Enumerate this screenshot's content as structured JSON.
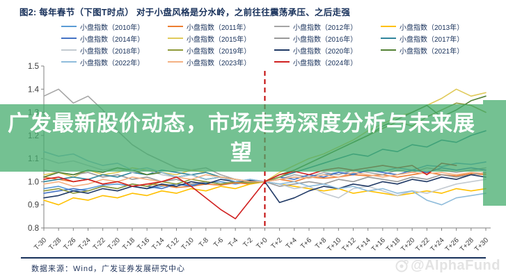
{
  "figure": {
    "title": "图2:  每年春节（下图T时点）  对于小盘风格是分水岭，之前往往震荡承压、之后走强"
  },
  "overlay": {
    "headline": "广发最新股价动态，市场走势深度分析与未来展望",
    "color_rgba": "rgba(70,172,110,0.75)"
  },
  "footer": {
    "source": "数据来源：Wind，广发证券发展研究中心",
    "watermark": "@AlphaFund",
    "watermark_icon": "camera-logo-icon"
  },
  "chart_data": {
    "type": "line",
    "title": "",
    "xlabel": "",
    "ylabel": "",
    "ylim": [
      0.8,
      1.5
    ],
    "yticks": [
      0.8,
      0.9,
      1.0,
      1.1,
      1.2,
      1.3,
      1.4,
      1.5
    ],
    "grid": false,
    "legend_position": "top",
    "marker_line": {
      "x_label": "T+0",
      "color": "#c00000",
      "style": "dashed"
    },
    "x_labels": [
      "T-30",
      "T-28",
      "T-26",
      "T-24",
      "T-22",
      "T-20",
      "T-18",
      "T-16",
      "T-14",
      "T-12",
      "T-10",
      "T-8",
      "T-6",
      "T-4",
      "T-2",
      "T+0",
      "T+2",
      "T+4",
      "T+6",
      "T+8",
      "T+10",
      "T+12",
      "T+14",
      "T+16",
      "T+18",
      "T+20",
      "T+22",
      "T+24",
      "T+26",
      "T+28",
      "T+30"
    ],
    "series": [
      {
        "name": "小盘指数（2010年）",
        "color": "#5b9bd5",
        "values": [
          0.97,
          0.98,
          0.96,
          0.97,
          0.985,
          0.99,
          0.98,
          0.97,
          0.98,
          0.99,
          0.985,
          0.995,
          1.0,
          0.99,
          1.0,
          1.0,
          1.01,
          1.02,
          1.015,
          1.03,
          1.04,
          1.035,
          1.05,
          1.045,
          1.06,
          1.05,
          1.07,
          1.065,
          1.08,
          1.075,
          1.085
        ]
      },
      {
        "name": "小盘指数（2011年）",
        "color": "#ed7d31",
        "values": [
          1.02,
          1.01,
          1.0,
          1.01,
          0.99,
          1.0,
          0.98,
          0.99,
          0.985,
          0.975,
          0.98,
          0.99,
          0.985,
          0.995,
          0.99,
          1.0,
          1.01,
          1.0,
          1.02,
          1.015,
          1.02,
          1.03,
          1.025,
          1.03,
          1.02,
          1.03,
          1.04,
          1.03,
          1.025,
          1.035,
          1.03
        ]
      },
      {
        "name": "小盘指数（2012年）",
        "color": "#a5a5a5",
        "values": [
          1.37,
          1.4,
          1.34,
          1.37,
          1.31,
          1.22,
          1.16,
          1.12,
          1.09,
          1.06,
          1.05,
          1.06,
          1.03,
          1.01,
          1.0,
          1.0,
          1.01,
          1.03,
          1.02,
          1.04,
          1.03,
          1.05,
          1.04,
          1.03,
          1.05,
          1.04,
          1.06,
          1.05,
          1.04,
          1.05,
          1.06
        ]
      },
      {
        "name": "小盘指数（2013年）",
        "color": "#ffc000",
        "values": [
          0.92,
          0.9,
          0.93,
          0.92,
          0.94,
          0.93,
          0.95,
          0.94,
          0.96,
          0.95,
          0.97,
          0.96,
          0.98,
          0.97,
          0.99,
          1.0,
          0.99,
          0.98,
          0.97,
          0.96,
          0.97,
          0.95,
          0.96,
          0.95,
          0.94,
          0.95,
          0.96,
          0.95,
          0.97,
          0.96,
          0.97
        ]
      },
      {
        "name": "小盘指数（2014年）",
        "color": "#4472c4",
        "values": [
          0.95,
          0.96,
          0.97,
          0.96,
          0.98,
          0.97,
          0.99,
          0.98,
          0.97,
          0.99,
          0.98,
          1.0,
          0.99,
          1.0,
          1.01,
          1.0,
          1.02,
          1.01,
          1.03,
          1.02,
          1.04,
          1.03,
          1.05,
          1.04,
          1.03,
          1.05,
          1.04,
          1.06,
          1.05,
          1.06,
          1.05
        ]
      },
      {
        "name": "小盘指数（2015年）",
        "color": "#e0ca5a",
        "values": [
          1.03,
          1.04,
          1.02,
          1.05,
          1.03,
          1.04,
          1.06,
          1.05,
          1.04,
          1.03,
          1.05,
          1.04,
          1.02,
          1.01,
          1.0,
          1.0,
          1.04,
          1.07,
          1.1,
          1.12,
          1.15,
          1.18,
          1.22,
          1.25,
          1.28,
          1.3,
          1.33,
          1.36,
          1.4,
          1.37,
          1.385
        ]
      },
      {
        "name": "小盘指数（2016年）",
        "color": "#999999",
        "values": [
          1.05,
          1.04,
          1.03,
          1.04,
          1.02,
          1.03,
          1.01,
          1.02,
          1.0,
          1.01,
          0.99,
          1.0,
          0.99,
          1.0,
          0.995,
          1.0,
          0.98,
          0.99,
          1.0,
          0.99,
          1.01,
          1.0,
          1.02,
          1.01,
          1.0,
          1.02,
          1.01,
          1.03,
          1.02,
          1.03,
          1.04
        ]
      },
      {
        "name": "小盘指数（2017年）",
        "color": "#31859c",
        "values": [
          1.0,
          1.01,
          1.02,
          1.01,
          1.03,
          1.02,
          1.04,
          1.03,
          1.05,
          1.04,
          1.03,
          1.04,
          1.02,
          1.01,
          1.0,
          1.0,
          1.02,
          1.04,
          1.06,
          1.08,
          1.1,
          1.12,
          1.11,
          1.14,
          1.13,
          1.16,
          1.15,
          1.18,
          1.17,
          1.2,
          1.22
        ]
      },
      {
        "name": "小盘指数（2018年）",
        "color": "#c3cad1",
        "values": [
          1.1,
          1.08,
          1.09,
          1.07,
          1.05,
          1.06,
          1.04,
          1.05,
          1.03,
          1.02,
          1.03,
          1.01,
          1.02,
          1.0,
          1.01,
          1.0,
          0.99,
          0.97,
          0.98,
          0.95,
          0.93,
          0.97,
          0.98,
          0.96,
          0.94,
          0.96,
          0.95,
          0.97,
          0.99,
          1.0,
          1.01
        ]
      },
      {
        "name": "小盘指数（2019年）",
        "color": "#8f9a3a",
        "values": [
          0.96,
          0.97,
          0.95,
          0.96,
          0.98,
          0.97,
          0.99,
          0.98,
          1.0,
          0.99,
          1.01,
          1.0,
          0.99,
          1.0,
          0.995,
          1.0,
          1.02,
          1.05,
          1.08,
          1.11,
          1.14,
          1.17,
          1.2,
          1.23,
          1.26,
          1.24,
          1.28,
          1.31,
          1.34,
          1.33,
          1.3
        ]
      },
      {
        "name": "小盘指数（2020年）",
        "color": "#1f3864",
        "values": [
          0.93,
          0.94,
          0.96,
          0.95,
          0.97,
          0.96,
          0.98,
          0.97,
          0.99,
          0.98,
          1.0,
          0.99,
          1.01,
          1.0,
          1.005,
          1.0,
          0.91,
          0.93,
          0.96,
          0.98,
          0.97,
          0.99,
          0.98,
          1.0,
          0.99,
          1.01,
          1.0,
          1.02,
          1.01,
          1.03,
          1.02
        ]
      },
      {
        "name": "小盘指数（2021年）",
        "color": "#538135",
        "values": [
          1.02,
          1.04,
          1.03,
          1.05,
          1.04,
          1.06,
          1.05,
          1.03,
          1.04,
          1.02,
          1.03,
          1.01,
          1.02,
          1.01,
          1.0,
          1.0,
          1.03,
          1.05,
          1.08,
          1.11,
          1.14,
          1.17,
          1.2,
          1.24,
          1.27,
          1.3,
          1.33,
          1.28,
          1.31,
          1.35,
          1.37
        ]
      },
      {
        "name": "小盘指数（2022年）",
        "color": "#8fbcdb",
        "values": [
          1.13,
          1.11,
          1.12,
          1.09,
          1.07,
          1.08,
          1.05,
          1.06,
          1.04,
          1.02,
          1.03,
          1.01,
          1.02,
          1.0,
          1.01,
          1.0,
          0.99,
          1.0,
          0.98,
          0.99,
          0.97,
          0.98,
          0.96,
          0.97,
          0.95,
          0.96,
          0.92,
          0.9,
          0.93,
          0.94,
          0.95
        ]
      },
      {
        "name": "小盘指数（2023年）",
        "color": "#f4b183",
        "values": [
          0.99,
          1.0,
          0.98,
          0.99,
          1.01,
          1.0,
          1.02,
          1.01,
          1.0,
          1.02,
          1.01,
          1.03,
          1.02,
          1.01,
          1.0,
          1.0,
          1.01,
          1.02,
          1.015,
          1.03,
          1.02,
          1.04,
          1.03,
          1.02,
          1.03,
          1.04,
          1.035,
          1.04,
          1.03,
          1.04,
          1.035
        ]
      },
      {
        "name": "小盘指数（2024年）",
        "color": "#d02020",
        "values": [
          1.01,
          1.02,
          1.0,
          1.01,
          0.99,
          1.0,
          0.98,
          0.99,
          1.0,
          1.02,
          0.98,
          0.93,
          0.88,
          0.84,
          0.92,
          1.0,
          1.03,
          1.045,
          1.03,
          1.05,
          1.06,
          1.05,
          1.06,
          1.07,
          1.06,
          1.07,
          1.03,
          1.08,
          1.07,
          null,
          null
        ]
      }
    ]
  }
}
